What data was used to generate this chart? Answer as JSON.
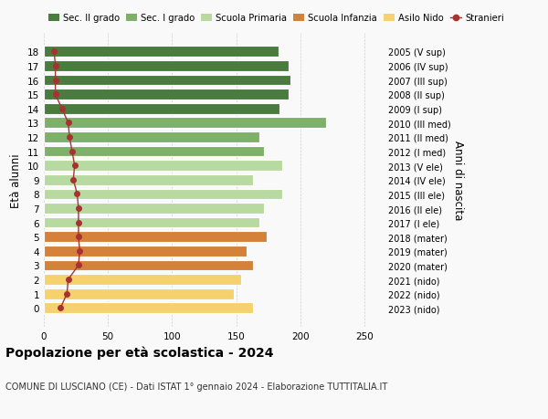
{
  "ages": [
    18,
    17,
    16,
    15,
    14,
    13,
    12,
    11,
    10,
    9,
    8,
    7,
    6,
    5,
    4,
    3,
    2,
    1,
    0
  ],
  "bar_values": [
    183,
    191,
    192,
    191,
    184,
    220,
    168,
    172,
    186,
    163,
    186,
    172,
    168,
    174,
    158,
    163,
    154,
    148,
    163
  ],
  "stranieri": [
    8,
    9,
    9,
    9,
    14,
    19,
    20,
    22,
    24,
    23,
    26,
    27,
    27,
    27,
    28,
    27,
    19,
    18,
    13
  ],
  "right_labels": [
    "2005 (V sup)",
    "2006 (IV sup)",
    "2007 (III sup)",
    "2008 (II sup)",
    "2009 (I sup)",
    "2010 (III med)",
    "2011 (II med)",
    "2012 (I med)",
    "2013 (V ele)",
    "2014 (IV ele)",
    "2015 (III ele)",
    "2016 (II ele)",
    "2017 (I ele)",
    "2018 (mater)",
    "2019 (mater)",
    "2020 (mater)",
    "2021 (nido)",
    "2022 (nido)",
    "2023 (nido)"
  ],
  "bar_colors": [
    "#4a7c3f",
    "#4a7c3f",
    "#4a7c3f",
    "#4a7c3f",
    "#4a7c3f",
    "#7fb069",
    "#7fb069",
    "#7fb069",
    "#b8d9a0",
    "#b8d9a0",
    "#b8d9a0",
    "#b8d9a0",
    "#b8d9a0",
    "#d4813a",
    "#d4813a",
    "#d4813a",
    "#f5d26e",
    "#f5d26e",
    "#f5d26e"
  ],
  "legend_labels": [
    "Sec. II grado",
    "Sec. I grado",
    "Scuola Primaria",
    "Scuola Infanzia",
    "Asilo Nido",
    "Stranieri"
  ],
  "legend_colors": [
    "#4a7c3f",
    "#7fb069",
    "#b8d9a0",
    "#d4813a",
    "#f5d26e",
    "#a83232"
  ],
  "stranieri_color": "#a83232",
  "title": "Popolazione per età scolastica - 2024",
  "subtitle": "COMUNE DI LUSCIANO (CE) - Dati ISTAT 1° gennaio 2024 - Elaborazione TUTTITALIA.IT",
  "ylabel": "Età alunni",
  "right_ylabel": "Anni di nascita",
  "xlim": [
    0,
    265
  ],
  "xticks": [
    0,
    50,
    100,
    150,
    200,
    250
  ],
  "background_color": "#f9f9f9",
  "grid_color": "#cccccc"
}
